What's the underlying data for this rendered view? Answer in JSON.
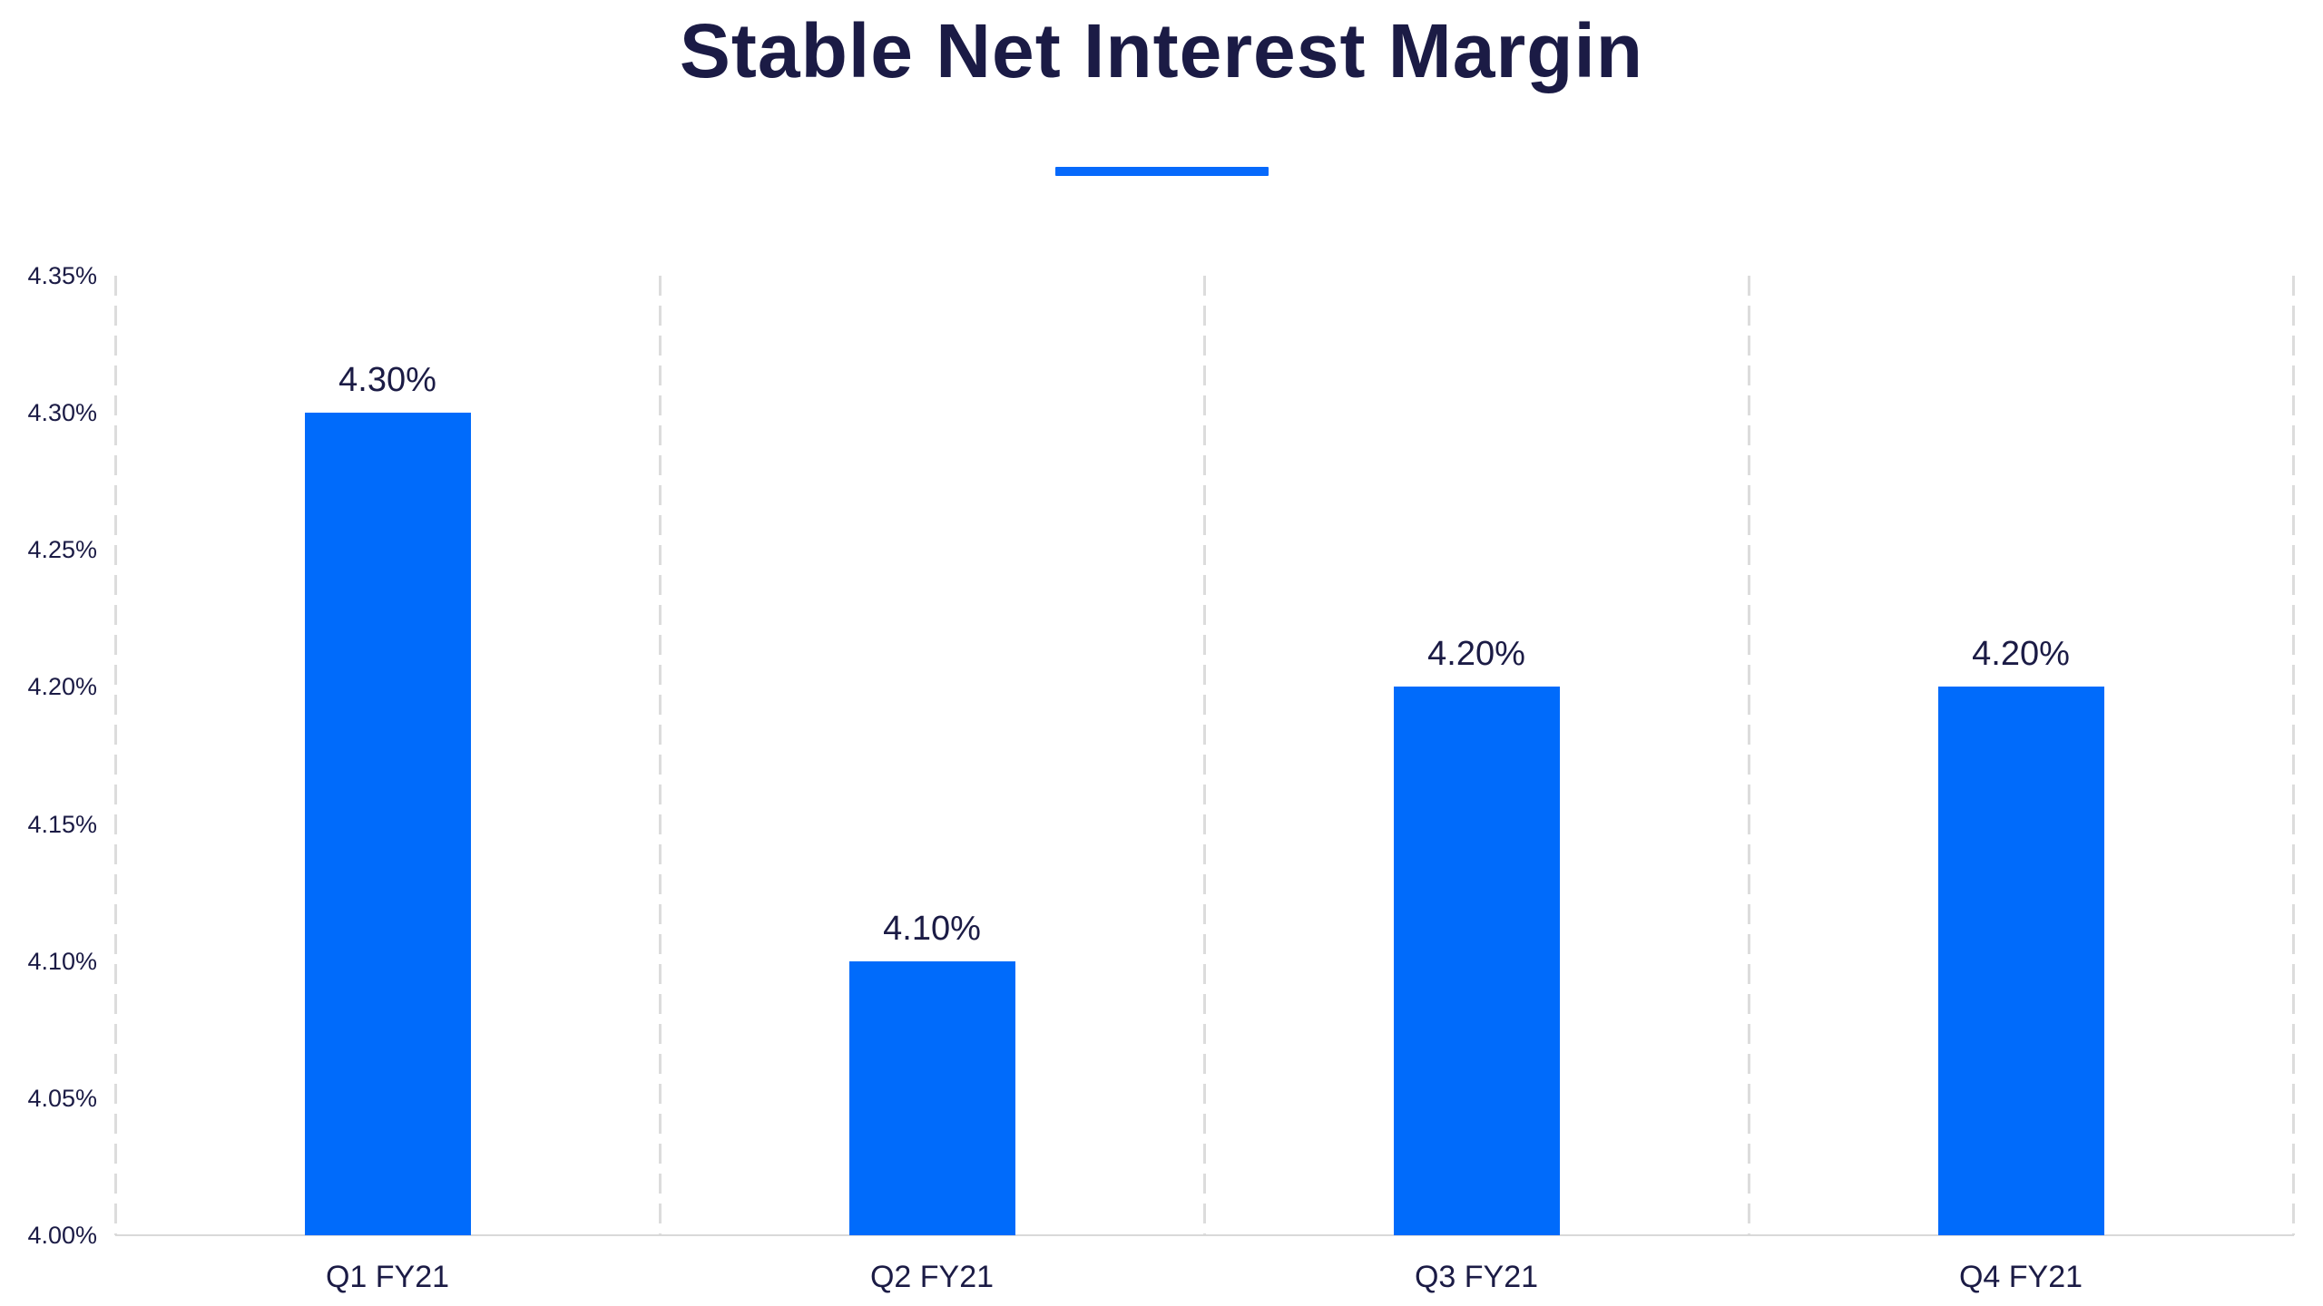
{
  "header": {
    "title": "Stable Net Interest Margin"
  },
  "colors": {
    "accent_blue": "#0669FB",
    "bar_blue": "#006BFB",
    "text_navy": "#1B1B45",
    "grid_gray": "#DCDCDC",
    "baseline_gray": "#D9D9D9"
  },
  "chart_data": {
    "type": "bar",
    "title": "Stable Net Interest Margin",
    "categories": [
      "Q1 FY21",
      "Q2 FY21",
      "Q3 FY21",
      "Q4 FY21"
    ],
    "values": [
      4.3,
      4.1,
      4.2,
      4.2
    ],
    "data_labels": [
      "4.30%",
      "4.10%",
      "4.20%",
      "4.20%"
    ],
    "xlabel": "",
    "ylabel": "",
    "ylim": [
      4.0,
      4.35
    ],
    "ytick_step": 0.05,
    "ytick_labels": [
      "4.00%",
      "4.05%",
      "4.10%",
      "4.15%",
      "4.20%",
      "4.25%",
      "4.30%",
      "4.35%"
    ],
    "grid": "vertical-dashed-separators",
    "legend": "none"
  }
}
